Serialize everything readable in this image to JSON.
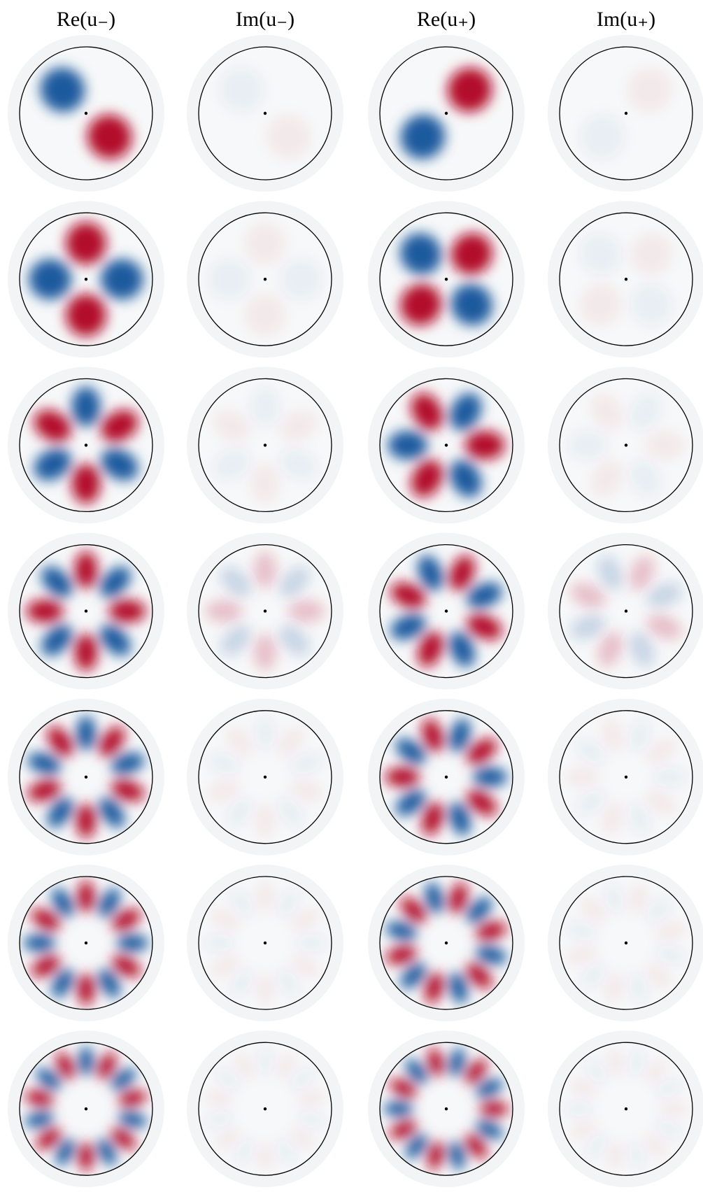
{
  "columns": [
    "Re(u₋)",
    "Im(u₋)",
    "Re(u₊)",
    "Im(u₊)"
  ]
}
